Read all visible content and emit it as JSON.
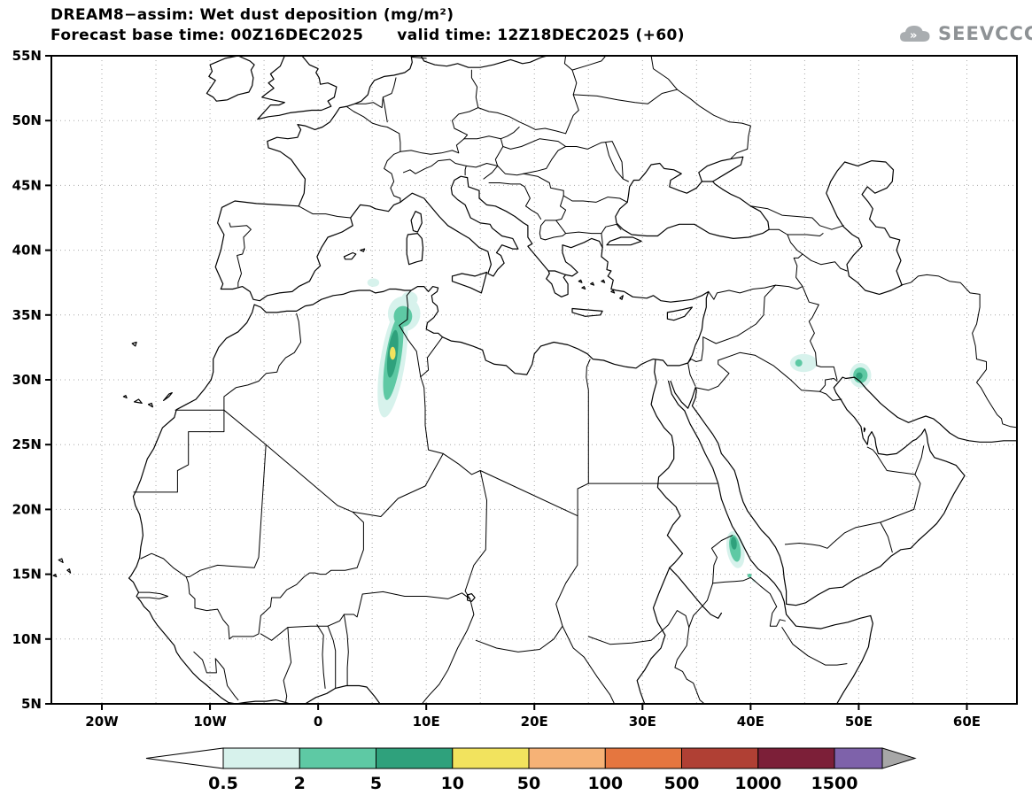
{
  "header": {
    "title": "DREAM8−assim: Wet dust deposition (mg/m²)",
    "subtitle": "Forecast base time: 00Z16DEC2025      valid time: 12Z18DEC2025 (+60)",
    "logo_text": "SEEVCCC"
  },
  "map": {
    "lat_ticks": [
      {
        "value": 55,
        "label": "55N"
      },
      {
        "value": 50,
        "label": "50N"
      },
      {
        "value": 45,
        "label": "45N"
      },
      {
        "value": 40,
        "label": "40N"
      },
      {
        "value": 35,
        "label": "35N"
      },
      {
        "value": 30,
        "label": "30N"
      },
      {
        "value": 25,
        "label": "25N"
      },
      {
        "value": 20,
        "label": "20N"
      },
      {
        "value": 15,
        "label": "15N"
      },
      {
        "value": 10,
        "label": "10N"
      },
      {
        "value": 5,
        "label": "5N"
      }
    ],
    "lon_ticks": [
      {
        "value": -20,
        "label": "20W"
      },
      {
        "value": -10,
        "label": "10W"
      },
      {
        "value": 0,
        "label": "0"
      },
      {
        "value": 10,
        "label": "10E"
      },
      {
        "value": 20,
        "label": "20E"
      },
      {
        "value": 30,
        "label": "30E"
      },
      {
        "value": 40,
        "label": "40E"
      },
      {
        "value": 50,
        "label": "50E"
      },
      {
        "value": 60,
        "label": "60E"
      }
    ]
  },
  "colorbar": {
    "labels": [
      "0.5",
      "2",
      "5",
      "10",
      "50",
      "100",
      "500",
      "1000",
      "1500"
    ]
  },
  "chart_data": {
    "type": "heatmap",
    "title": "DREAM8-assim: Wet dust deposition (mg/m²)",
    "variable": "Wet dust deposition",
    "units": "mg/m²",
    "model": "DREAM8-assim",
    "forecast_base_time": "00Z16DEC2025",
    "valid_time": "12Z18DEC2025",
    "lead_hours": 60,
    "lon_range": [
      -24.7,
      64.8
    ],
    "lat_range": [
      5,
      55
    ],
    "grid": "dotted 5-degree graticule",
    "legend_position": "bottom",
    "levels": [
      0.5,
      2,
      5,
      10,
      50,
      100,
      500,
      1000,
      1500
    ],
    "palette": {
      "under": "#ffffff",
      "colors": [
        "#d7f2ec",
        "#5ec9a4",
        "#2fa17c",
        "#f2e35e",
        "#f6b276",
        "#e5763f",
        "#b04034",
        "#7c1f38",
        "#7e62aa"
      ],
      "over": "#a7a7a7"
    },
    "regions": [
      {
        "area": "algeria-tunisia plume halo",
        "bin": "0.5-2",
        "color_index": 0,
        "center_lon": 6.9,
        "center_lat": 31.4,
        "rx_deg": 1.15,
        "ry_deg": 4.35,
        "rotation_deg": 9
      },
      {
        "area": "algeria-tunisia plume north halo",
        "bin": "0.5-2",
        "color_index": 0,
        "center_lon": 7.95,
        "center_lat": 35.1,
        "rx_deg": 1.5,
        "ry_deg": 1.35,
        "rotation_deg": 0
      },
      {
        "area": "tunisia coast halo",
        "bin": "0.5-2",
        "color_index": 0,
        "center_lon": 8.45,
        "center_lat": 36.25,
        "rx_deg": 0.75,
        "ry_deg": 0.55,
        "rotation_deg": 0
      },
      {
        "area": "algeria coast spot",
        "bin": "0.5-2",
        "color_index": 0,
        "center_lon": 5.1,
        "center_lat": 37.5,
        "rx_deg": 0.55,
        "ry_deg": 0.33,
        "rotation_deg": 0
      },
      {
        "area": "algeria-tunisia plume",
        "bin": "2-5",
        "color_index": 1,
        "center_lon": 6.95,
        "center_lat": 31.7,
        "rx_deg": 0.72,
        "ry_deg": 3.3,
        "rotation_deg": 9
      },
      {
        "area": "algeria-tunisia plume north",
        "bin": "2-5",
        "color_index": 1,
        "center_lon": 7.85,
        "center_lat": 34.9,
        "rx_deg": 0.85,
        "ry_deg": 0.8,
        "rotation_deg": 0
      },
      {
        "area": "algeria plume core",
        "bin": "5-10",
        "color_index": 2,
        "center_lon": 6.9,
        "center_lat": 32.0,
        "rx_deg": 0.45,
        "ry_deg": 1.85,
        "rotation_deg": 7
      },
      {
        "area": "algeria plume max",
        "bin": "10-50",
        "color_index": 3,
        "center_lon": 6.9,
        "center_lat": 32.05,
        "rx_deg": 0.27,
        "ry_deg": 0.5,
        "rotation_deg": 0
      },
      {
        "area": "iraq patch",
        "bin": "0.5-2",
        "color_index": 0,
        "center_lon": 44.9,
        "center_lat": 31.3,
        "rx_deg": 1.25,
        "ry_deg": 0.7,
        "rotation_deg": 0
      },
      {
        "area": "iraq patch core",
        "bin": "2-5",
        "color_index": 1,
        "center_lon": 44.45,
        "center_lat": 31.3,
        "rx_deg": 0.33,
        "ry_deg": 0.28,
        "rotation_deg": 0
      },
      {
        "area": "iran persian-gulf patch halo",
        "bin": "0.5-2",
        "color_index": 0,
        "center_lon": 50.15,
        "center_lat": 30.35,
        "rx_deg": 1.0,
        "ry_deg": 0.95,
        "rotation_deg": 0
      },
      {
        "area": "iran persian-gulf patch",
        "bin": "2-5",
        "color_index": 1,
        "center_lon": 50.15,
        "center_lat": 30.35,
        "rx_deg": 0.66,
        "ry_deg": 0.6,
        "rotation_deg": 0
      },
      {
        "area": "iran persian-gulf core",
        "bin": "5-10",
        "color_index": 2,
        "center_lon": 50.05,
        "center_lat": 30.3,
        "rx_deg": 0.3,
        "ry_deg": 0.27,
        "rotation_deg": 0
      },
      {
        "area": "eritrea patch halo",
        "bin": "0.5-2",
        "color_index": 0,
        "center_lon": 38.6,
        "center_lat": 16.9,
        "rx_deg": 0.8,
        "ry_deg": 1.45,
        "rotation_deg": -10
      },
      {
        "area": "eritrea patch",
        "bin": "2-5",
        "color_index": 1,
        "center_lon": 38.55,
        "center_lat": 17.0,
        "rx_deg": 0.5,
        "ry_deg": 1.05,
        "rotation_deg": -10
      },
      {
        "area": "eritrea patch core",
        "bin": "5-10",
        "color_index": 2,
        "center_lon": 38.45,
        "center_lat": 17.4,
        "rx_deg": 0.27,
        "ry_deg": 0.5,
        "rotation_deg": -6
      },
      {
        "area": "red-sea coast speck",
        "bin": "2-5",
        "color_index": 1,
        "center_lon": 39.9,
        "center_lat": 14.9,
        "rx_deg": 0.2,
        "ry_deg": 0.15,
        "rotation_deg": 0
      },
      {
        "area": "red-sea coast speck 2",
        "bin": "0.5-2",
        "color_index": 0,
        "center_lon": 40.3,
        "center_lat": 14.5,
        "rx_deg": 0.16,
        "ry_deg": 0.12,
        "rotation_deg": 0
      }
    ]
  }
}
